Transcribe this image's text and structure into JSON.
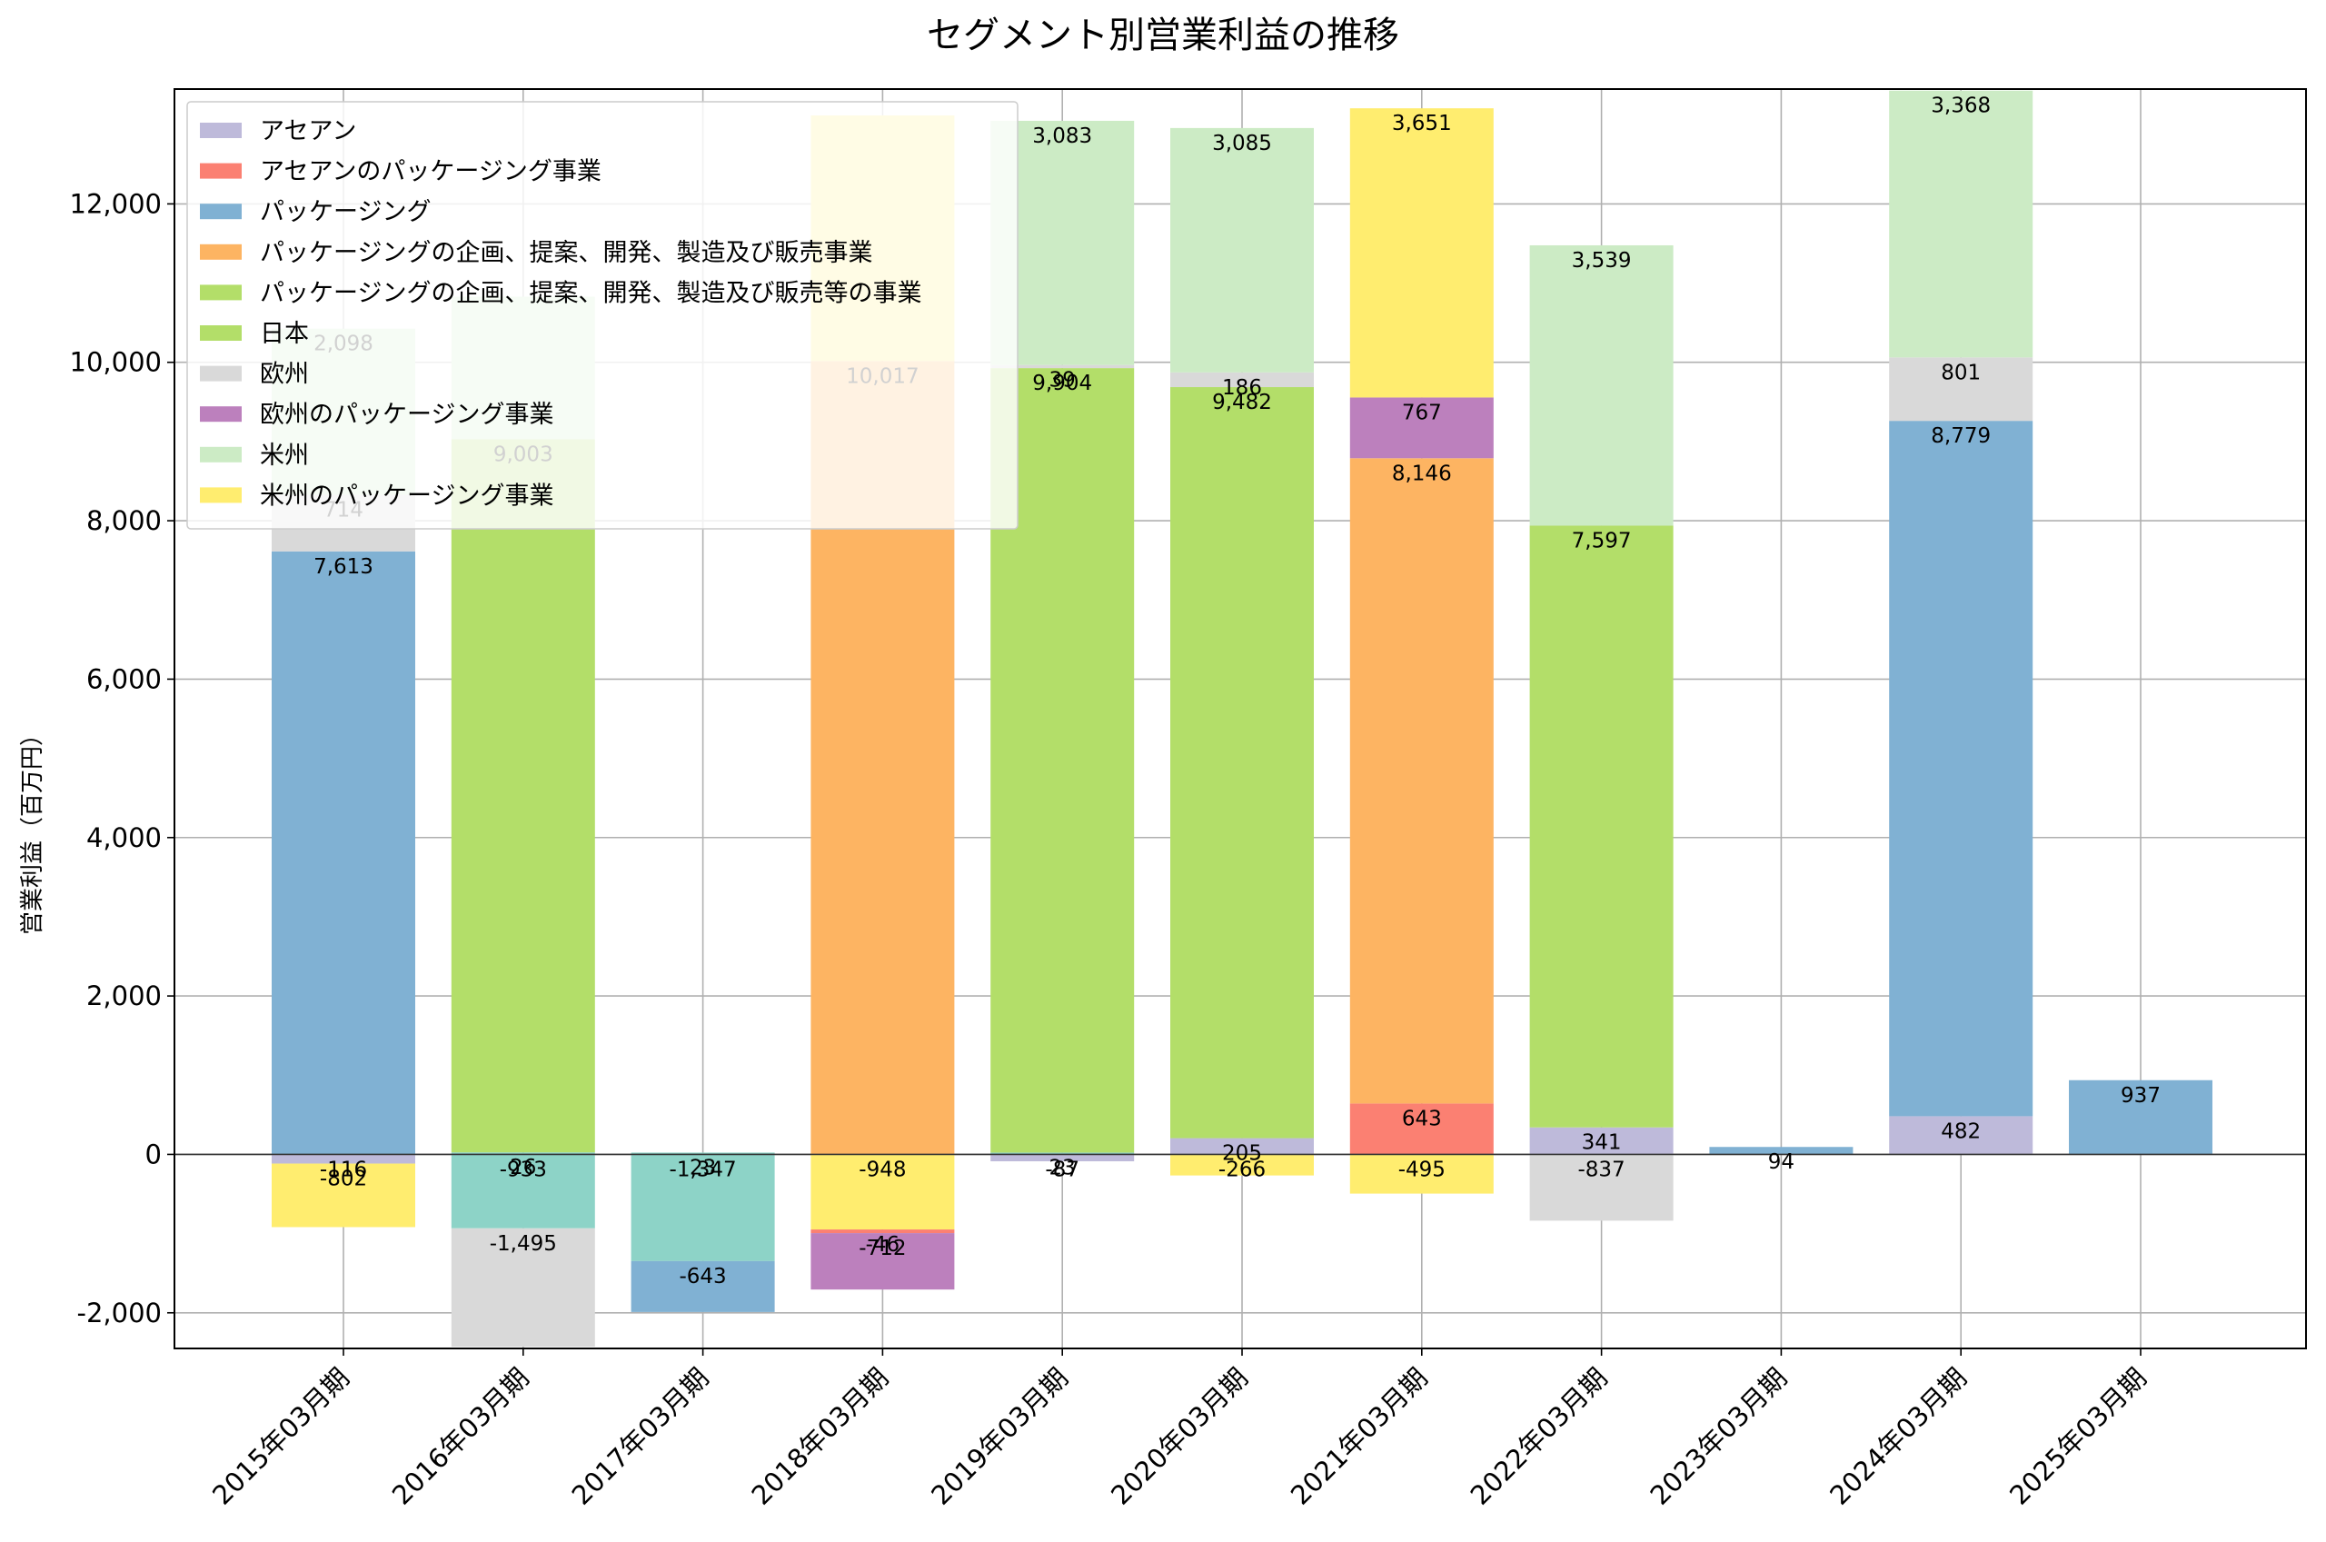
{
  "chart_data": {
    "type": "bar",
    "title": "セグメント別営業利益の推移",
    "xlabel": "",
    "ylabel": "営業利益（百万円）",
    "ylim": [
      -2450,
      13450
    ],
    "yticks": [
      -2000,
      0,
      2000,
      4000,
      6000,
      8000,
      10000,
      12000
    ],
    "ytick_labels": [
      "-2,000",
      "0",
      "2,000",
      "4,000",
      "6,000",
      "8,000",
      "10,000",
      "12,000"
    ],
    "grid": true,
    "legend_position": "top-left",
    "categories": [
      "2015年03月期",
      "2016年03月期",
      "2017年03月期",
      "2018年03月期",
      "2019年03月期",
      "2020年03月期",
      "2021年03月期",
      "2022年03月期",
      "2023年03月期",
      "2024年03月期",
      "2025年03月期"
    ],
    "legend": [
      {
        "name": "アセアン",
        "color": "#bebada"
      },
      {
        "name": "アセアンのパッケージング事業",
        "color": "#fb8072"
      },
      {
        "name": "パッケージング",
        "color": "#80b1d3"
      },
      {
        "name": "パッケージングの企画、提案、開発、製造及び販売事業",
        "color": "#fdb462"
      },
      {
        "name": "パッケージングの企画、提案、開発、製造及び販売等の事業",
        "color": "#b3de69"
      },
      {
        "name": "日本",
        "color": "#b3de69"
      },
      {
        "name": "欧州",
        "color": "#d9d9d9"
      },
      {
        "name": "欧州のパッケージング事業",
        "color": "#bc80bd"
      },
      {
        "name": "米州",
        "color": "#ccebc5"
      },
      {
        "name": "米州のパッケージング事業",
        "color": "#ffed6f"
      }
    ],
    "bars": [
      {
        "segment": "アセアン",
        "category": "2015年03月期",
        "value": -116,
        "color": "#bebada",
        "label": "-116"
      },
      {
        "segment": "米州のパッケージング事業",
        "category": "2015年03月期",
        "value": -802,
        "color": "#ffed6f",
        "label": "-802"
      },
      {
        "segment": "パッケージング",
        "category": "2015年03月期",
        "value": 7613,
        "color": "#80b1d3",
        "label": "7,613"
      },
      {
        "segment": "欧州",
        "category": "2015年03月期",
        "value": 714,
        "color": "#d9d9d9",
        "label": "714"
      },
      {
        "segment": "米州",
        "category": "2015年03月期",
        "value": 2098,
        "color": "#ccebc5",
        "label": "2,098"
      },
      {
        "segment": "ターコイズ",
        "category": "2016年03月期",
        "value": 26,
        "color": "#8dd3c7",
        "label": "26"
      },
      {
        "segment": "ターコイズ",
        "category": "2016年03月期",
        "value": -933,
        "color": "#8dd3c7",
        "label": "-933"
      },
      {
        "segment": "欧州",
        "category": "2016年03月期",
        "value": -1495,
        "color": "#d9d9d9",
        "label": "-1,495"
      },
      {
        "segment": "日本",
        "category": "2016年03月期",
        "value": 9003,
        "color": "#b3de69",
        "label": "9,003"
      },
      {
        "segment": "米州",
        "category": "2016年03月期",
        "value": 1800,
        "color": "#ccebc5",
        "label": ""
      },
      {
        "segment": "ターコイズ",
        "category": "2017年03月期",
        "value": 23,
        "color": "#8dd3c7",
        "label": "23"
      },
      {
        "segment": "ターコイズ",
        "category": "2017年03月期",
        "value": -1347,
        "color": "#8dd3c7",
        "label": "-1,347"
      },
      {
        "segment": "パッケージング",
        "category": "2017年03月期",
        "value": -643,
        "color": "#80b1d3",
        "label": "-643"
      },
      {
        "segment": "米州のパッケージング事業",
        "category": "2018年03月期",
        "value": -948,
        "color": "#ffed6f",
        "label": "-948"
      },
      {
        "segment": "アセアンのパッケージング事業",
        "category": "2018年03月期",
        "value": -46,
        "color": "#fb8072",
        "label": "-46"
      },
      {
        "segment": "欧州のパッケージング事業",
        "category": "2018年03月期",
        "value": -712,
        "color": "#bc80bd",
        "label": "-712"
      },
      {
        "segment": "パッケージングの企画、提案、開発、製造及び販売事業",
        "category": "2018年03月期",
        "value": 10017,
        "color": "#fdb462",
        "label": "10,017"
      },
      {
        "segment": "米州のパッケージング事業",
        "category": "2018年03月期",
        "value": 3100,
        "color": "#ffed6f",
        "label": ""
      },
      {
        "segment": "アセアン",
        "category": "2019年03月期",
        "value": -87,
        "color": "#bebada",
        "label": "-87"
      },
      {
        "segment": "ターコイズ",
        "category": "2019年03月期",
        "value": 23,
        "color": "#8dd3c7",
        "label": "23"
      },
      {
        "segment": "日本",
        "category": "2019年03月期",
        "value": 9904,
        "color": "#b3de69",
        "label": "9,904"
      },
      {
        "segment": "欧州",
        "category": "2019年03月期",
        "value": 39,
        "color": "#d9d9d9",
        "label": "39"
      },
      {
        "segment": "米州",
        "category": "2019年03月期",
        "value": 3083,
        "color": "#ccebc5",
        "label": "3,083"
      },
      {
        "segment": "米州のパッケージング事業",
        "category": "2020年03月期",
        "value": -266,
        "color": "#ffed6f",
        "label": "-266"
      },
      {
        "segment": "アセアン",
        "category": "2020年03月期",
        "value": 205,
        "color": "#bebada",
        "label": "205"
      },
      {
        "segment": "日本",
        "category": "2020年03月期",
        "value": 9482,
        "color": "#b3de69",
        "label": "9,482"
      },
      {
        "segment": "欧州",
        "category": "2020年03月期",
        "value": 186,
        "color": "#d9d9d9",
        "label": "186"
      },
      {
        "segment": "米州",
        "category": "2020年03月期",
        "value": 3085,
        "color": "#ccebc5",
        "label": "3,085"
      },
      {
        "segment": "米州のパッケージング事業",
        "category": "2021年03月期",
        "value": -495,
        "color": "#ffed6f",
        "label": "-495"
      },
      {
        "segment": "アセアンのパッケージング事業",
        "category": "2021年03月期",
        "value": 643,
        "color": "#fb8072",
        "label": "643"
      },
      {
        "segment": "パッケージングの企画、提案、開発、製造及び販売事業",
        "category": "2021年03月期",
        "value": 8146,
        "color": "#fdb462",
        "label": "8,146"
      },
      {
        "segment": "欧州のパッケージング事業",
        "category": "2021年03月期",
        "value": 767,
        "color": "#bc80bd",
        "label": "767"
      },
      {
        "segment": "米州のパッケージング事業",
        "category": "2021年03月期",
        "value": 3651,
        "color": "#ffed6f",
        "label": "3,651"
      },
      {
        "segment": "欧州",
        "category": "2022年03月期",
        "value": -837,
        "color": "#d9d9d9",
        "label": "-837"
      },
      {
        "segment": "アセアン",
        "category": "2022年03月期",
        "value": 341,
        "color": "#bebada",
        "label": "341"
      },
      {
        "segment": "日本",
        "category": "2022年03月期",
        "value": 7597,
        "color": "#b3de69",
        "label": "7,597"
      },
      {
        "segment": "米州",
        "category": "2022年03月期",
        "value": 3539,
        "color": "#ccebc5",
        "label": "3,539"
      },
      {
        "segment": "パッケージング",
        "category": "2023年03月期",
        "value": 94,
        "color": "#80b1d3",
        "label": "94"
      },
      {
        "segment": "アセアン",
        "category": "2024年03月期",
        "value": 482,
        "color": "#bebada",
        "label": "482"
      },
      {
        "segment": "パッケージング",
        "category": "2024年03月期",
        "value": 8779,
        "color": "#80b1d3",
        "label": "8,779"
      },
      {
        "segment": "欧州",
        "category": "2024年03月期",
        "value": 801,
        "color": "#d9d9d9",
        "label": "801"
      },
      {
        "segment": "米州",
        "category": "2024年03月期",
        "value": 3368,
        "color": "#ccebc5",
        "label": "3,368"
      },
      {
        "segment": "パッケージング",
        "category": "2025年03月期",
        "value": 937,
        "color": "#80b1d3",
        "label": "937"
      }
    ]
  }
}
